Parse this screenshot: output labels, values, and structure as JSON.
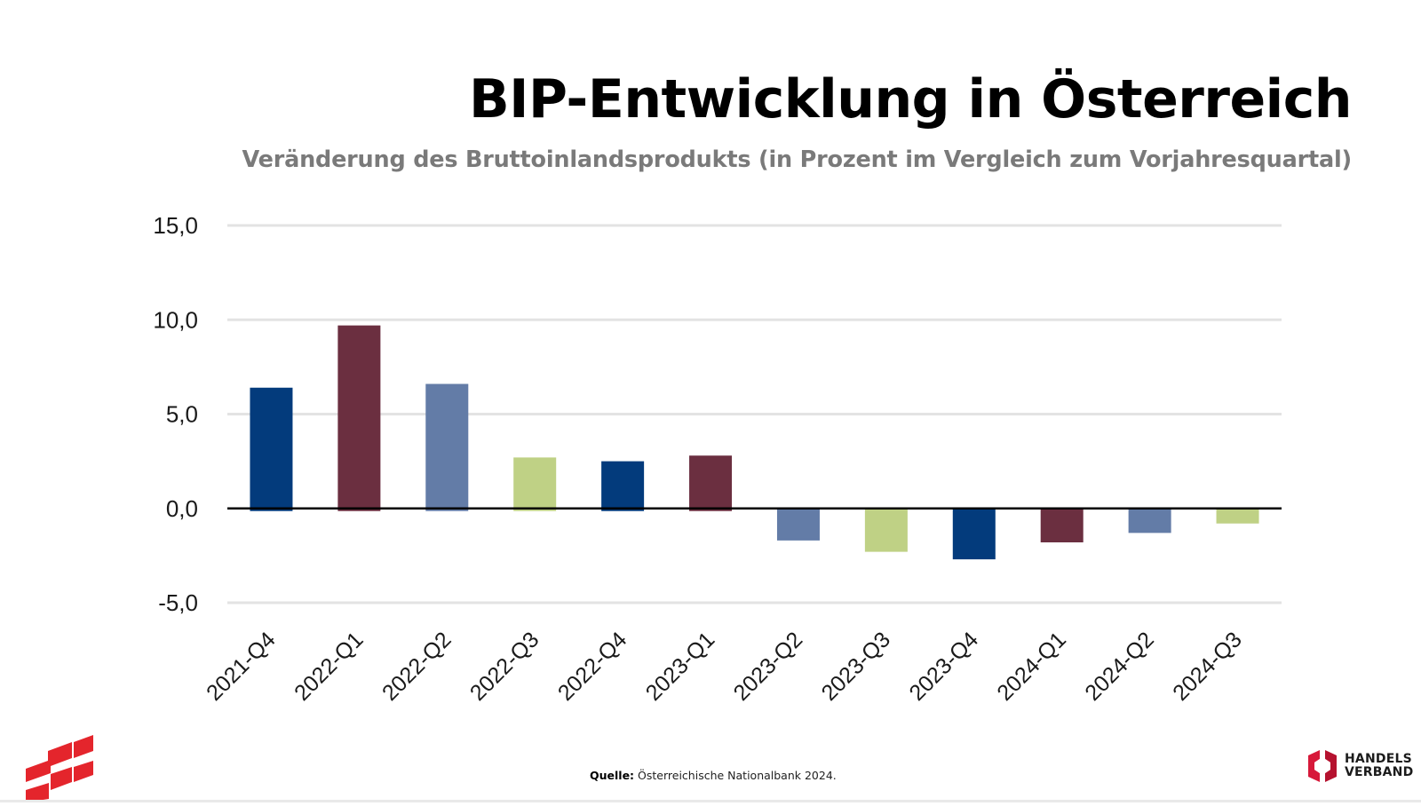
{
  "header": {
    "title": "BIP-Entwicklung in Österreich",
    "subtitle": "Veränderung des Bruttoinlandsprodukts (in Prozent im Vergleich zum Vorjahresquartal)"
  },
  "footer": {
    "source_label": "Quelle:",
    "source_text": " Österreichische Nationalbank 2024."
  },
  "logos": {
    "left": "austria-flag-logo",
    "right_line1": "HANDELS",
    "right_line2": "VERBAND"
  },
  "colors": {
    "navy": "#033b7c",
    "maroon": "#6b2f40",
    "steel_blue": "#637ca7",
    "light_green": "#bfd185",
    "gridline": "#e3e3e3",
    "zero_line": "#000000"
  },
  "chart_data": {
    "type": "bar",
    "title": "BIP-Entwicklung in Österreich",
    "subtitle": "Veränderung des Bruttoinlandsprodukts (in Prozent im Vergleich zum Vorjahresquartal)",
    "xlabel": "",
    "ylabel": "",
    "categories": [
      "2021-Q4",
      "2022-Q1",
      "2022-Q2",
      "2022-Q3",
      "2022-Q4",
      "2023-Q1",
      "2023-Q2",
      "2023-Q3",
      "2023-Q4",
      "2024-Q1",
      "2024-Q2",
      "2024-Q3"
    ],
    "values": [
      6.4,
      9.7,
      6.6,
      2.7,
      2.5,
      2.8,
      -1.7,
      -2.3,
      -2.7,
      -1.8,
      -1.3,
      -0.8
    ],
    "bar_colors": [
      "#033b7c",
      "#6b2f40",
      "#637ca7",
      "#bfd185",
      "#033b7c",
      "#6b2f40",
      "#637ca7",
      "#bfd185",
      "#033b7c",
      "#6b2f40",
      "#637ca7",
      "#bfd185"
    ],
    "ylim": [
      -5,
      15
    ],
    "yticks": [
      15,
      10,
      5,
      0,
      -5
    ],
    "ytick_labels": [
      "15,0",
      "10,0",
      "5,0",
      "0,0",
      "-5,0"
    ],
    "grid": true,
    "legend": "none",
    "source": "Quelle: Österreichische Nationalbank 2024."
  }
}
